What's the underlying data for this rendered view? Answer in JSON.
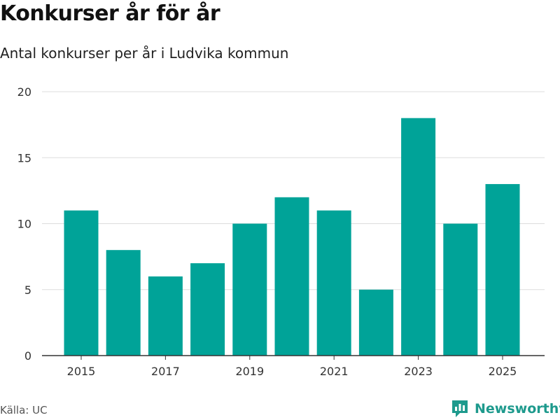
{
  "title": "Konkurser år för år",
  "subtitle": "Antal konkurser per år i Ludvika kommun",
  "source": "Källa: UC",
  "brand": {
    "name": "Newsworthy",
    "icon": "newsworthy-logo-icon",
    "color": "#1e9a8d"
  },
  "colors": {
    "bar": "#00a398",
    "grid": "#dddddd",
    "axis": "#333333"
  },
  "chart_data": {
    "type": "bar",
    "categories": [
      2015,
      2016,
      2017,
      2018,
      2019,
      2020,
      2021,
      2022,
      2023,
      2024,
      2025
    ],
    "values": [
      11,
      8,
      6,
      7,
      10,
      12,
      11,
      5,
      18,
      10,
      13
    ],
    "xticks": [
      "2015",
      "2017",
      "2019",
      "2021",
      "2023",
      "2025"
    ],
    "yticks": [
      0,
      5,
      10,
      15,
      20
    ],
    "ylim": [
      0,
      20
    ],
    "grid": true,
    "legend": "none"
  }
}
